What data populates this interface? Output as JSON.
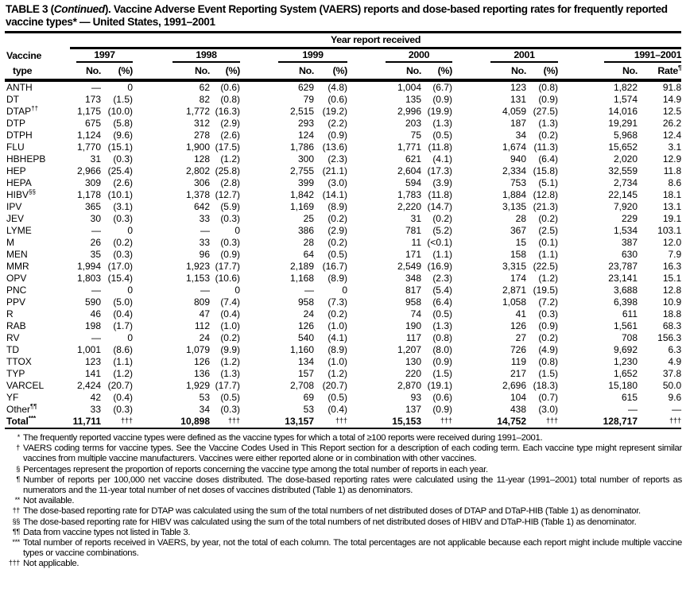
{
  "title": {
    "prefix": "TABLE 3 (",
    "italic": "Continued",
    "rest": "). Vaccine Adverse Event Reporting System (VAERS) reports and dose-based reporting rates for frequently reported vaccine types* — United States, 1991–2001"
  },
  "header": {
    "group": "Year report received",
    "vaccine": "Vaccine",
    "type": "type",
    "years": [
      "1997",
      "1998",
      "1999",
      "2000",
      "2001",
      "1991–2001"
    ],
    "no": "No.",
    "pct": "(%)",
    "rate": "Rate",
    "rate_sup": "¶"
  },
  "rows": [
    {
      "name": "ANTH",
      "sup": "",
      "v": [
        "—",
        "0",
        "62",
        "(0.6)",
        "629",
        "(4.8)",
        "1,004",
        "(6.7)",
        "123",
        "(0.8)",
        "1,822",
        "91.8"
      ]
    },
    {
      "name": "DT",
      "sup": "",
      "v": [
        "173",
        "(1.5)",
        "82",
        "(0.8)",
        "79",
        "(0.6)",
        "135",
        "(0.9)",
        "131",
        "(0.9)",
        "1,574",
        "14.9"
      ]
    },
    {
      "name": "DTAP",
      "sup": "††",
      "v": [
        "1,175",
        "(10.0)",
        "1,772",
        "(16.3)",
        "2,515",
        "(19.2)",
        "2,996",
        "(19.9)",
        "4,059",
        "(27.5)",
        "14,016",
        "12.5"
      ]
    },
    {
      "name": "DTP",
      "sup": "",
      "v": [
        "675",
        "(5.8)",
        "312",
        "(2.9)",
        "293",
        "(2.2)",
        "203",
        "(1.3)",
        "187",
        "(1.3)",
        "19,291",
        "26.2"
      ]
    },
    {
      "name": "DTPH",
      "sup": "",
      "v": [
        "1,124",
        "(9.6)",
        "278",
        "(2.6)",
        "124",
        "(0.9)",
        "75",
        "(0.5)",
        "34",
        "(0.2)",
        "5,968",
        "12.4"
      ]
    },
    {
      "name": "FLU",
      "sup": "",
      "v": [
        "1,770",
        "(15.1)",
        "1,900",
        "(17.5)",
        "1,786",
        "(13.6)",
        "1,771",
        "(11.8)",
        "1,674",
        "(11.3)",
        "15,652",
        "3.1"
      ]
    },
    {
      "name": "HBHEPB",
      "sup": "",
      "v": [
        "31",
        "(0.3)",
        "128",
        "(1.2)",
        "300",
        "(2.3)",
        "621",
        "(4.1)",
        "940",
        "(6.4)",
        "2,020",
        "12.9"
      ]
    },
    {
      "name": "HEP",
      "sup": "",
      "v": [
        "2,966",
        "(25.4)",
        "2,802",
        "(25.8)",
        "2,755",
        "(21.1)",
        "2,604",
        "(17.3)",
        "2,334",
        "(15.8)",
        "32,559",
        "11.8"
      ]
    },
    {
      "name": "HEPA",
      "sup": "",
      "v": [
        "309",
        "(2.6)",
        "306",
        "(2.8)",
        "399",
        "(3.0)",
        "594",
        "(3.9)",
        "753",
        "(5.1)",
        "2,734",
        "8.6"
      ]
    },
    {
      "name": "HIBV",
      "sup": "§§",
      "v": [
        "1,178",
        "(10.1)",
        "1,378",
        "(12.7)",
        "1,842",
        "(14.1)",
        "1,783",
        "(11.8)",
        "1,884",
        "(12.8)",
        "22,145",
        "18.1"
      ]
    },
    {
      "name": "IPV",
      "sup": "",
      "v": [
        "365",
        "(3.1)",
        "642",
        "(5.9)",
        "1,169",
        "(8.9)",
        "2,220",
        "(14.7)",
        "3,135",
        "(21.3)",
        "7,920",
        "13.1"
      ]
    },
    {
      "name": "JEV",
      "sup": "",
      "v": [
        "30",
        "(0.3)",
        "33",
        "(0.3)",
        "25",
        "(0.2)",
        "31",
        "(0.2)",
        "28",
        "(0.2)",
        "229",
        "19.1"
      ]
    },
    {
      "name": "LYME",
      "sup": "",
      "v": [
        "—",
        "0",
        "—",
        "0",
        "386",
        "(2.9)",
        "781",
        "(5.2)",
        "367",
        "(2.5)",
        "1,534",
        "103.1"
      ]
    },
    {
      "name": "M",
      "sup": "",
      "v": [
        "26",
        "(0.2)",
        "33",
        "(0.3)",
        "28",
        "(0.2)",
        "11",
        "(<0.1)",
        "15",
        "(0.1)",
        "387",
        "12.0"
      ]
    },
    {
      "name": "MEN",
      "sup": "",
      "v": [
        "35",
        "(0.3)",
        "96",
        "(0.9)",
        "64",
        "(0.5)",
        "171",
        "(1.1)",
        "158",
        "(1.1)",
        "630",
        "7.9"
      ]
    },
    {
      "name": "MMR",
      "sup": "",
      "v": [
        "1,994",
        "(17.0)",
        "1,923",
        "(17.7)",
        "2,189",
        "(16.7)",
        "2,549",
        "(16.9)",
        "3,315",
        "(22.5)",
        "23,787",
        "16.3"
      ]
    },
    {
      "name": "OPV",
      "sup": "",
      "v": [
        "1,803",
        "(15.4)",
        "1,153",
        "(10.6)",
        "1,168",
        "(8.9)",
        "348",
        "(2.3)",
        "174",
        "(1.2)",
        "23,141",
        "15.1"
      ]
    },
    {
      "name": "PNC",
      "sup": "",
      "v": [
        "—",
        "0",
        "—",
        "0",
        "—",
        "0",
        "817",
        "(5.4)",
        "2,871",
        "(19.5)",
        "3,688",
        "12.8"
      ]
    },
    {
      "name": "PPV",
      "sup": "",
      "v": [
        "590",
        "(5.0)",
        "809",
        "(7.4)",
        "958",
        "(7.3)",
        "958",
        "(6.4)",
        "1,058",
        "(7.2)",
        "6,398",
        "10.9"
      ]
    },
    {
      "name": "R",
      "sup": "",
      "v": [
        "46",
        "(0.4)",
        "47",
        "(0.4)",
        "24",
        "(0.2)",
        "74",
        "(0.5)",
        "41",
        "(0.3)",
        "611",
        "18.8"
      ]
    },
    {
      "name": "RAB",
      "sup": "",
      "v": [
        "198",
        "(1.7)",
        "112",
        "(1.0)",
        "126",
        "(1.0)",
        "190",
        "(1.3)",
        "126",
        "(0.9)",
        "1,561",
        "68.3"
      ]
    },
    {
      "name": "RV",
      "sup": "",
      "v": [
        "—",
        "0",
        "24",
        "(0.2)",
        "540",
        "(4.1)",
        "117",
        "(0.8)",
        "27",
        "(0.2)",
        "708",
        "156.3"
      ]
    },
    {
      "name": "TD",
      "sup": "",
      "v": [
        "1,001",
        "(8.6)",
        "1,079",
        "(9.9)",
        "1,160",
        "(8.9)",
        "1,207",
        "(8.0)",
        "726",
        "(4.9)",
        "9,692",
        "6.3"
      ]
    },
    {
      "name": "TTOX",
      "sup": "",
      "v": [
        "123",
        "(1.1)",
        "126",
        "(1.2)",
        "134",
        "(1.0)",
        "130",
        "(0.9)",
        "119",
        "(0.8)",
        "1,230",
        "4.9"
      ]
    },
    {
      "name": "TYP",
      "sup": "",
      "v": [
        "141",
        "(1.2)",
        "136",
        "(1.3)",
        "157",
        "(1.2)",
        "220",
        "(1.5)",
        "217",
        "(1.5)",
        "1,652",
        "37.8"
      ]
    },
    {
      "name": "VARCEL",
      "sup": "",
      "v": [
        "2,424",
        "(20.7)",
        "1,929",
        "(17.7)",
        "2,708",
        "(20.7)",
        "2,870",
        "(19.1)",
        "2,696",
        "(18.3)",
        "15,180",
        "50.0"
      ]
    },
    {
      "name": "YF",
      "sup": "",
      "v": [
        "42",
        "(0.4)",
        "53",
        "(0.5)",
        "69",
        "(0.5)",
        "93",
        "(0.6)",
        "104",
        "(0.7)",
        "615",
        "9.6"
      ]
    },
    {
      "name": "Other",
      "sup": "¶¶",
      "v": [
        "33",
        "(0.3)",
        "34",
        "(0.3)",
        "53",
        "(0.4)",
        "137",
        "(0.9)",
        "438",
        "(3.0)",
        "—",
        "—"
      ]
    }
  ],
  "total": {
    "name": "Total",
    "sup": "***",
    "v": [
      "11,711",
      "†††",
      "10,898",
      "†††",
      "13,157",
      "†††",
      "15,153",
      "†††",
      "14,752",
      "†††",
      "128,717",
      "†††"
    ]
  },
  "footnotes": [
    {
      "mark": "*",
      "text": "The frequently reported vaccine types were defined as the vaccine types for which a total of ≥100 reports were received during 1991–2001."
    },
    {
      "mark": "†",
      "text": "VAERS coding terms for vaccine types. See the Vaccine Codes Used in This Report section for a description of each coding term. Each vaccine type might represent similar vaccines from multiple vaccine manufacturers. Vaccines were either reported alone or in combination with other vaccines."
    },
    {
      "mark": "§",
      "text": "Percentages represent the proportion of reports concerning the vaccine type among the total number of reports in each year."
    },
    {
      "mark": "¶",
      "text": "Number of reports per 100,000 net vaccine doses distributed. The dose-based reporting rates were calculated using the 11-year (1991–2001) total number of reports as numerators and the 11-year total number of net doses of vaccines distributed (Table 1) as denominators."
    },
    {
      "mark": "**",
      "text": "Not available."
    },
    {
      "mark": "††",
      "text": "The dose-based reporting rate for DTAP was calculated using the sum of the total numbers of net distributed doses of DTAP and DTaP-HIB (Table 1) as denominator."
    },
    {
      "mark": "§§",
      "text": "The dose-based reporting rate for HIBV was calculated using the sum of the total numbers of net distributed doses of HIBV and DTaP-HIB (Table 1) as denominator."
    },
    {
      "mark": "¶¶",
      "text": "Data from vaccine types not listed in Table 3."
    },
    {
      "mark": "***",
      "text": "Total number of reports received in VAERS, by year, not the total of each column. The total percentages are not applicable because each report might include multiple vaccine types or vaccine combinations."
    },
    {
      "mark": "†††",
      "text": "Not applicable."
    }
  ]
}
